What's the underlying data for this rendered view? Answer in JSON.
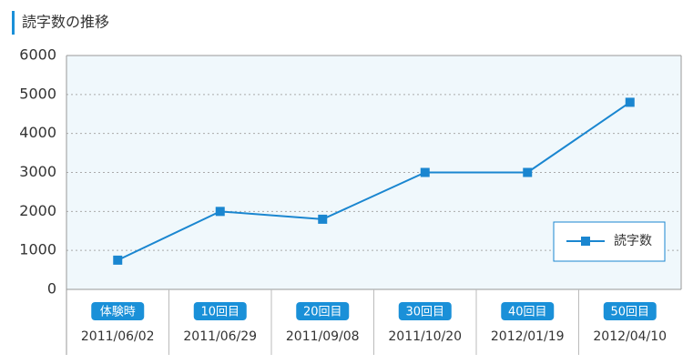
{
  "chart_data": {
    "type": "line",
    "title": "読字数の推移",
    "categories": [
      "体験時",
      "10回目",
      "20回目",
      "30回目",
      "40回目",
      "50回目"
    ],
    "category_dates": [
      "2011/06/02",
      "2011/06/29",
      "2011/09/08",
      "2011/10/20",
      "2012/01/19",
      "2012/04/10"
    ],
    "series": [
      {
        "name": "読字数",
        "color": "#1a86d0",
        "values": [
          750,
          2000,
          1800,
          3000,
          3000,
          4800
        ]
      }
    ],
    "ylim": [
      0,
      6000
    ],
    "yticks": [
      0,
      1000,
      2000,
      3000,
      4000,
      5000,
      6000
    ],
    "grid": true,
    "legend": "lower-right",
    "badge_color": "#1a90d8"
  }
}
